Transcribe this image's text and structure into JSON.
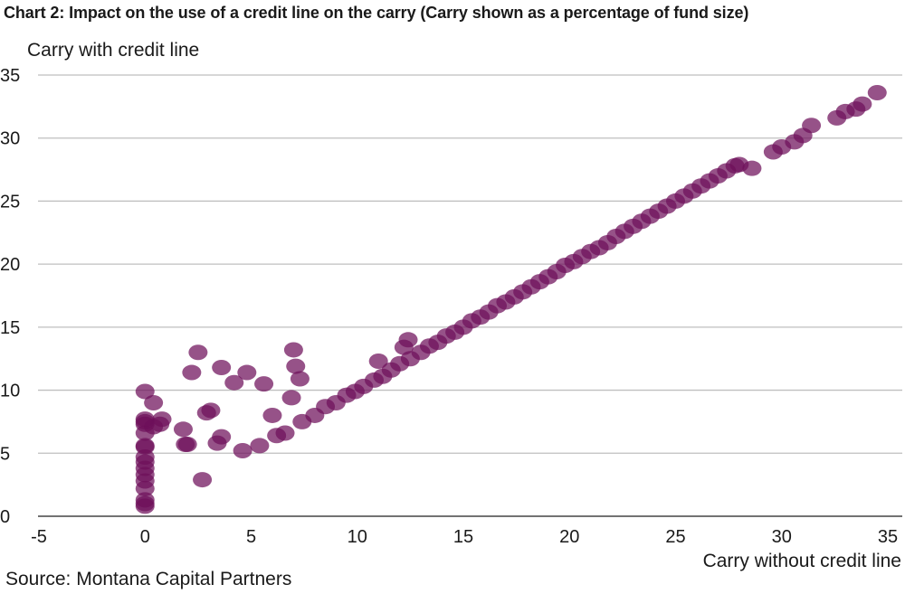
{
  "chart_data": {
    "type": "scatter",
    "title": "Chart 2: Impact on the use of a credit line on the carry (Carry shown as a percentage of fund size)",
    "xlabel": "Carry without credit line",
    "ylabel": "Carry with credit line",
    "source": "Source: Montana Capital Partners",
    "xlim": [
      -5,
      35
    ],
    "ylim": [
      0,
      35
    ],
    "xticks": [
      "-5",
      "0",
      "5",
      "10",
      "15",
      "20",
      "25",
      "30",
      "35"
    ],
    "yticks": [
      "0",
      "5",
      "10",
      "15",
      "20",
      "25",
      "30",
      "35"
    ],
    "grid": "horizontal",
    "marker_color": "#6e0f5a",
    "series": [
      {
        "points": [
          [
            0,
            0.8
          ],
          [
            0,
            1.0
          ],
          [
            0,
            1.3
          ],
          [
            0,
            2.2
          ],
          [
            0,
            2.8
          ],
          [
            0,
            3.3
          ],
          [
            0,
            3.8
          ],
          [
            0,
            4.3
          ],
          [
            0,
            4.7
          ],
          [
            0,
            5.5
          ],
          [
            0,
            5.6
          ],
          [
            0,
            6.6
          ],
          [
            0,
            7.3
          ],
          [
            0,
            7.5
          ],
          [
            0,
            7.7
          ],
          [
            0,
            9.9
          ],
          [
            0.4,
            7.1
          ],
          [
            0.4,
            9.0
          ],
          [
            0.7,
            7.3
          ],
          [
            0.8,
            7.7
          ],
          [
            1.8,
            6.9
          ],
          [
            1.9,
            5.7
          ],
          [
            2.0,
            5.7
          ],
          [
            2.2,
            11.4
          ],
          [
            2.5,
            13.0
          ],
          [
            2.7,
            2.9
          ],
          [
            2.9,
            8.2
          ],
          [
            3.1,
            8.4
          ],
          [
            3.4,
            5.8
          ],
          [
            3.6,
            6.3
          ],
          [
            3.6,
            11.8
          ],
          [
            4.2,
            10.6
          ],
          [
            4.6,
            5.2
          ],
          [
            4.8,
            11.4
          ],
          [
            5.4,
            5.6
          ],
          [
            5.6,
            10.5
          ],
          [
            6.0,
            8.0
          ],
          [
            6.2,
            6.4
          ],
          [
            6.6,
            6.6
          ],
          [
            6.9,
            9.4
          ],
          [
            7.0,
            13.2
          ],
          [
            7.1,
            11.9
          ],
          [
            7.3,
            10.9
          ],
          [
            7.4,
            7.5
          ],
          [
            8.0,
            8.0
          ],
          [
            8.5,
            8.7
          ],
          [
            9.0,
            9.0
          ],
          [
            9.5,
            9.6
          ],
          [
            9.9,
            9.9
          ],
          [
            10.3,
            10.3
          ],
          [
            10.8,
            10.8
          ],
          [
            11.0,
            12.3
          ],
          [
            11.2,
            11.1
          ],
          [
            11.6,
            11.6
          ],
          [
            12.0,
            12.1
          ],
          [
            12.2,
            13.4
          ],
          [
            12.4,
            14.0
          ],
          [
            12.5,
            12.5
          ],
          [
            13.0,
            13.0
          ],
          [
            13.4,
            13.5
          ],
          [
            13.8,
            13.8
          ],
          [
            14.2,
            14.3
          ],
          [
            14.6,
            14.6
          ],
          [
            15.0,
            15.0
          ],
          [
            15.4,
            15.5
          ],
          [
            15.8,
            15.8
          ],
          [
            16.2,
            16.2
          ],
          [
            16.6,
            16.7
          ],
          [
            17.0,
            17.0
          ],
          [
            17.4,
            17.4
          ],
          [
            17.8,
            17.8
          ],
          [
            18.2,
            18.2
          ],
          [
            18.6,
            18.6
          ],
          [
            19.0,
            19.0
          ],
          [
            19.4,
            19.4
          ],
          [
            19.8,
            19.9
          ],
          [
            20.2,
            20.2
          ],
          [
            20.6,
            20.6
          ],
          [
            21.0,
            21.0
          ],
          [
            21.4,
            21.3
          ],
          [
            21.8,
            21.7
          ],
          [
            22.2,
            22.2
          ],
          [
            22.6,
            22.6
          ],
          [
            23.0,
            23.0
          ],
          [
            23.4,
            23.4
          ],
          [
            23.8,
            23.8
          ],
          [
            24.2,
            24.2
          ],
          [
            24.6,
            24.6
          ],
          [
            25.0,
            25.0
          ],
          [
            25.4,
            25.4
          ],
          [
            25.8,
            25.8
          ],
          [
            26.2,
            26.2
          ],
          [
            26.6,
            26.6
          ],
          [
            27.0,
            27.0
          ],
          [
            27.4,
            27.4
          ],
          [
            27.8,
            27.8
          ],
          [
            28.0,
            27.9
          ],
          [
            28.6,
            27.6
          ],
          [
            29.6,
            28.9
          ],
          [
            30.0,
            29.3
          ],
          [
            30.6,
            29.7
          ],
          [
            31.0,
            30.2
          ],
          [
            31.4,
            31.0
          ],
          [
            32.6,
            31.6
          ],
          [
            33.0,
            32.1
          ],
          [
            33.5,
            32.3
          ],
          [
            33.8,
            32.7
          ],
          [
            34.5,
            33.6
          ]
        ]
      }
    ]
  }
}
